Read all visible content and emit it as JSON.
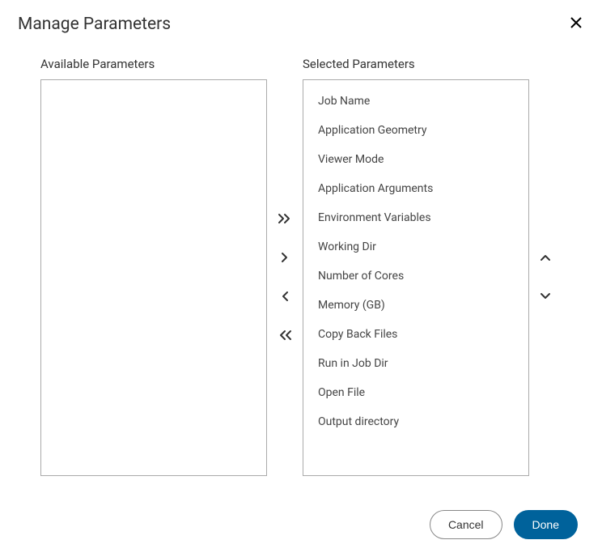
{
  "dialog": {
    "title": "Manage Parameters",
    "available_heading": "Available Parameters",
    "selected_heading": "Selected Parameters"
  },
  "available": [],
  "selected": [
    "Job Name",
    "Application Geometry",
    "Viewer Mode",
    "Application Arguments",
    "Environment Variables",
    "Working Dir",
    "Number of Cores",
    "Memory (GB)",
    "Copy Back Files",
    "Run in Job Dir",
    "Open File",
    "Output directory"
  ],
  "footer": {
    "cancel": "Cancel",
    "done": "Done"
  },
  "colors": {
    "primary": "#00629b",
    "border": "#aaaaaa",
    "text": "#333333"
  }
}
